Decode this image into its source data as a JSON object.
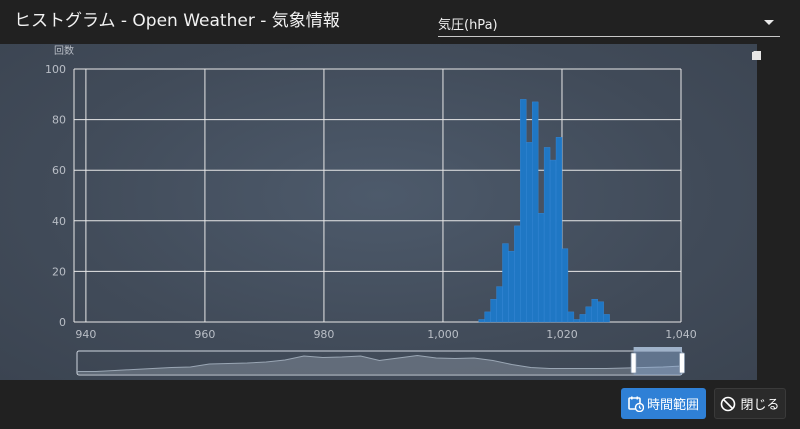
{
  "window": {
    "title": "ヒストグラム - Open Weather - 気象情報"
  },
  "variable_select": {
    "selected": "気圧(hPa)"
  },
  "toolbox": {
    "icons": [
      "zoom-in-icon",
      "zoom-reset-icon",
      "download-icon"
    ]
  },
  "chart_data": {
    "type": "bar",
    "ylabel": "回数",
    "xlim": [
      938,
      1040
    ],
    "ylim": [
      0,
      100
    ],
    "x_ticks": [
      "940",
      "960",
      "980",
      "1,000",
      "1,020",
      "1,040"
    ],
    "y_ticks": [
      "0",
      "20",
      "40",
      "60",
      "80",
      "100"
    ],
    "bin_width": 1,
    "bar_color": "#1f77c4",
    "grid": true,
    "series": [
      {
        "values": [
          {
            "x": 1006,
            "y": 1
          },
          {
            "x": 1007,
            "y": 4
          },
          {
            "x": 1008,
            "y": 9
          },
          {
            "x": 1009,
            "y": 14
          },
          {
            "x": 1010,
            "y": 31
          },
          {
            "x": 1011,
            "y": 28
          },
          {
            "x": 1012,
            "y": 38
          },
          {
            "x": 1013,
            "y": 88
          },
          {
            "x": 1014,
            "y": 71
          },
          {
            "x": 1015,
            "y": 87
          },
          {
            "x": 1016,
            "y": 43
          },
          {
            "x": 1017,
            "y": 69
          },
          {
            "x": 1018,
            "y": 64
          },
          {
            "x": 1019,
            "y": 73
          },
          {
            "x": 1020,
            "y": 29
          },
          {
            "x": 1021,
            "y": 4
          },
          {
            "x": 1022,
            "y": 1
          },
          {
            "x": 1023,
            "y": 3
          },
          {
            "x": 1024,
            "y": 6
          },
          {
            "x": 1025,
            "y": 9
          },
          {
            "x": 1026,
            "y": 8
          },
          {
            "x": 1027,
            "y": 3
          }
        ]
      }
    ],
    "zoom_slider": {
      "start_fraction": 0.92,
      "end_fraction": 1.0,
      "overview": [
        3,
        3,
        5,
        7,
        9,
        11,
        12,
        18,
        19,
        20,
        22,
        26,
        34,
        31,
        32,
        34,
        25,
        30,
        35,
        30,
        29,
        30,
        25,
        17,
        11,
        9,
        9,
        9,
        9,
        10,
        11,
        12,
        14
      ]
    }
  },
  "buttons": {
    "time_range": "時間範囲",
    "close": "閉じる"
  },
  "colors": {
    "accent": "#2f80d6",
    "panel": "#424c5a",
    "background": "#212121"
  }
}
